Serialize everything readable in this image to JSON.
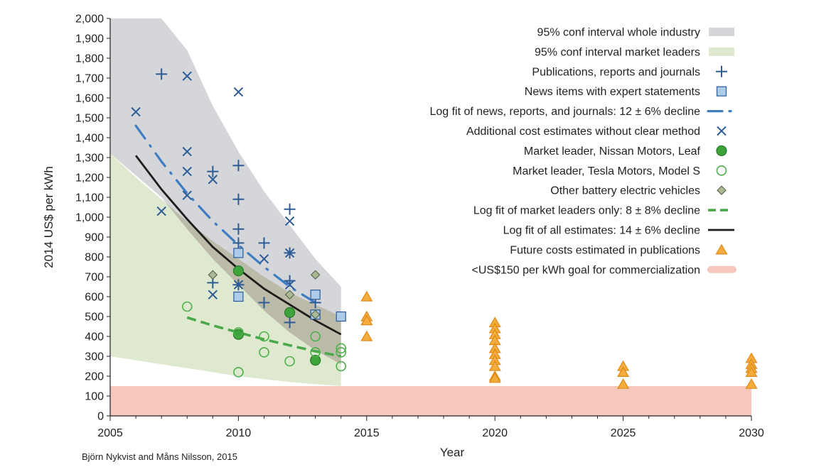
{
  "chart_data": {
    "type": "scatter",
    "xlabel": "Year",
    "ylabel": "2014 US$ per kWh",
    "xlim": [
      2005,
      2030
    ],
    "ylim": [
      0,
      2000
    ],
    "x_ticks": [
      2005,
      2010,
      2015,
      2020,
      2025,
      2030
    ],
    "y_ticks": [
      "0",
      "100",
      "200",
      "300",
      "400",
      "500",
      "600",
      "700",
      "800",
      "900",
      "1,000",
      "1,100",
      "1,200",
      "1,300",
      "1,400",
      "1,500",
      "1,600",
      "1,700",
      "1,800",
      "1,900",
      "2,000"
    ],
    "legend_position": "top-right",
    "colors": {
      "band_industry": "#d5d6da",
      "band_leaders": "#dfe9cf",
      "band_overlap": "#bcbba9",
      "goal": "#f6c8bc",
      "blue": "#2c5b97",
      "square_fill": "#aecbe8",
      "nissan": "#3fa33c",
      "tesla": "#4cb04a",
      "other_fill": "#aab896",
      "future": "#f3ac3d",
      "future_stroke": "#e08a14",
      "fit_all": "#1d1d1b",
      "fit_news": "#3f7dc0",
      "fit_leaders": "#4aa84a"
    },
    "industry_band": {
      "x": [
        2005,
        2007,
        2008,
        2009,
        2010,
        2011,
        2012,
        2013,
        2014
      ],
      "upper": [
        2000,
        2000,
        1840,
        1560,
        1330,
        1130,
        960,
        790,
        650
      ],
      "lower": [
        1320,
        1100,
        940,
        790,
        660,
        530,
        420,
        330,
        260
      ]
    },
    "leaders_band": {
      "x": [
        2005,
        2006,
        2007,
        2008,
        2009,
        2010,
        2011,
        2012,
        2013,
        2014
      ],
      "upper": [
        1320,
        1200,
        1090,
        980,
        880,
        790,
        700,
        620,
        560,
        500
      ],
      "lower": [
        300,
        280,
        260,
        240,
        220,
        200,
        185,
        170,
        160,
        150
      ]
    },
    "goal_band": {
      "lower": 0,
      "upper": 150
    },
    "series": [
      {
        "name": "Publications, reports and journals",
        "marker": "plus",
        "x": [
          2007,
          2009,
          2009,
          2010,
          2010,
          2010,
          2010,
          2010,
          2011,
          2011,
          2012,
          2012,
          2012,
          2012,
          2013
        ],
        "y": [
          1720,
          1230,
          670,
          1260,
          1090,
          940,
          870,
          660,
          870,
          570,
          1040,
          820,
          680,
          470,
          570
        ]
      },
      {
        "name": "News items with expert statements",
        "marker": "square",
        "x": [
          2010,
          2010,
          2013,
          2013,
          2014
        ],
        "y": [
          820,
          600,
          610,
          510,
          500
        ]
      },
      {
        "name": "Additional cost estimates without clear method",
        "marker": "x",
        "x": [
          2006,
          2007,
          2008,
          2008,
          2008,
          2008,
          2009,
          2009,
          2010,
          2010,
          2011,
          2012,
          2012,
          2012
        ],
        "y": [
          1530,
          1030,
          1710,
          1330,
          1230,
          1110,
          1190,
          610,
          1630,
          660,
          790,
          980,
          820,
          660
        ]
      },
      {
        "name": "Market leader, Nissan Motors, Leaf",
        "marker": "filled-circle",
        "x": [
          2010,
          2010,
          2012,
          2013
        ],
        "y": [
          730,
          410,
          520,
          280
        ]
      },
      {
        "name": "Market leader, Tesla Motors, Model S",
        "marker": "open-circle",
        "x": [
          2008,
          2010,
          2010,
          2011,
          2011,
          2012,
          2013,
          2013,
          2014,
          2014,
          2014
        ],
        "y": [
          550,
          420,
          220,
          400,
          320,
          275,
          400,
          320,
          340,
          320,
          250
        ]
      },
      {
        "name": "Other battery electric vehicles",
        "marker": "diamond",
        "x": [
          2009,
          2012,
          2013,
          2013
        ],
        "y": [
          710,
          610,
          710,
          510
        ]
      },
      {
        "name": "Future costs estimated in publications",
        "marker": "triangle",
        "x": [
          2015,
          2015,
          2015,
          2015,
          2020,
          2020,
          2020,
          2020,
          2020,
          2020,
          2020,
          2020,
          2020,
          2020,
          2025,
          2025,
          2025,
          2030,
          2030,
          2030,
          2030,
          2030
        ],
        "y": [
          600,
          500,
          480,
          400,
          470,
          440,
          410,
          380,
          340,
          310,
          280,
          250,
          200,
          190,
          250,
          220,
          160,
          290,
          260,
          240,
          220,
          160
        ]
      }
    ],
    "fit_lines": [
      {
        "name": "Log fit of news, reports, and journals: 12 ± 6% decline",
        "style": "dash-dot",
        "x": [
          2006,
          2007,
          2008,
          2009,
          2010,
          2011,
          2012,
          2013
        ],
        "y": [
          1460,
          1280,
          1120,
          980,
          860,
          750,
          650,
          570
        ]
      },
      {
        "name": "Log fit of market leaders only: 8 ± 8% decline",
        "style": "dashed",
        "x": [
          2008,
          2009,
          2010,
          2011,
          2012,
          2013,
          2014
        ],
        "y": [
          495,
          455,
          420,
          385,
          355,
          325,
          300
        ]
      },
      {
        "name": "Log fit of all estimates: 14 ± 6% decline",
        "style": "solid",
        "x": [
          2006,
          2007,
          2008,
          2009,
          2010,
          2011,
          2012,
          2013,
          2014
        ],
        "y": [
          1310,
          1140,
          990,
          850,
          740,
          640,
          560,
          480,
          410
        ]
      }
    ],
    "legend": [
      {
        "label": "95% conf interval whole industry",
        "key": "band-gray"
      },
      {
        "label": "95% conf interval market leaders",
        "key": "band-green"
      },
      {
        "label": "Publications, reports and journals",
        "key": "plus"
      },
      {
        "label": "News items with expert statements",
        "key": "square"
      },
      {
        "label": "Log fit of news, reports, and journals: 12 ± 6% decline",
        "key": "dash-dot"
      },
      {
        "label": "Additional cost estimates without clear method",
        "key": "x"
      },
      {
        "label": "Market leader, Nissan Motors, Leaf",
        "key": "filled-circle"
      },
      {
        "label": "Market leader, Tesla Motors, Model S",
        "key": "open-circle"
      },
      {
        "label": "Other battery electric vehicles",
        "key": "diamond"
      },
      {
        "label": "Log fit of market leaders only: 8 ± 8% decline",
        "key": "dashed"
      },
      {
        "label": "Log fit of all estimates: 14 ± 6% decline",
        "key": "solid"
      },
      {
        "label": "Future costs estimated in publications",
        "key": "triangle"
      },
      {
        "label": "<US$150 per kWh goal for commercialization",
        "key": "band-goal"
      }
    ]
  },
  "credit": "Björn Nykvist and Måns Nilsson, 2015"
}
